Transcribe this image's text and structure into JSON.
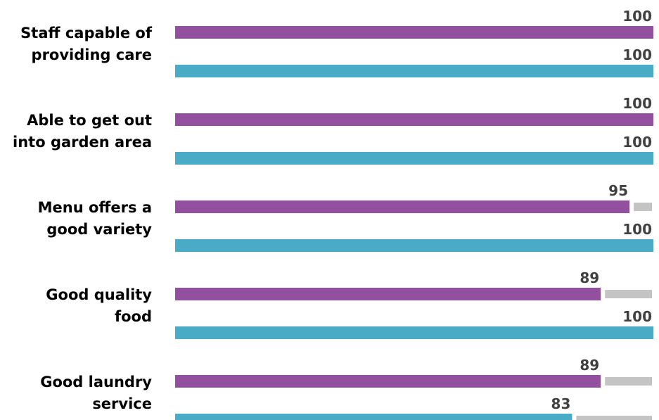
{
  "chart_data": {
    "type": "bar",
    "orientation": "horizontal",
    "categories": [
      "Staff capable of providing care",
      "Able to get out into garden area",
      "Menu offers a good variety",
      "Good quality food",
      "Good laundry service"
    ],
    "category_lines": [
      [
        "Staff capable of",
        "providing care"
      ],
      [
        "Able to get out",
        "into garden area"
      ],
      [
        "Menu offers a",
        "good variety"
      ],
      [
        "Good quality",
        "food"
      ],
      [
        "Good laundry",
        "service"
      ]
    ],
    "series": [
      {
        "color": "#93509e",
        "values": [
          100,
          100,
          95,
          89,
          89
        ]
      },
      {
        "color": "#4aabc6",
        "values": [
          100,
          100,
          100,
          100,
          83
        ]
      }
    ],
    "remainder_color": "#c4c4c4",
    "value_label_color": "#404040",
    "xlim": [
      0,
      100
    ],
    "gridlines": false,
    "legend": "none"
  }
}
